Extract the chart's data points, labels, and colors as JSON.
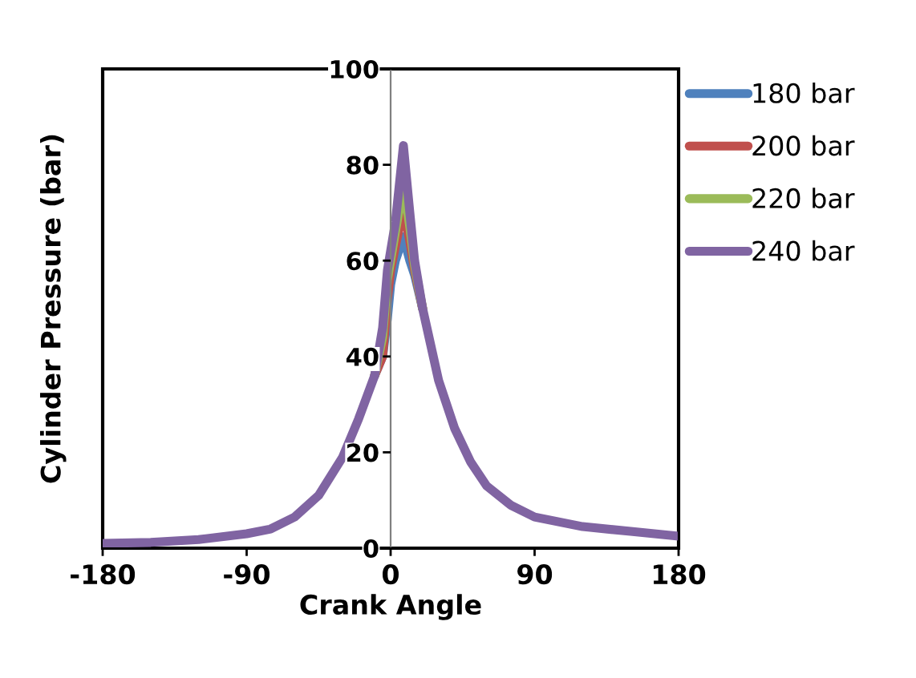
{
  "chart_data": {
    "type": "line",
    "xlabel": "Crank Angle",
    "ylabel": "Cylinder Pressure (bar)",
    "xlim": [
      -180,
      180
    ],
    "ylim": [
      0,
      100
    ],
    "xticks": [
      -180,
      -90,
      0,
      90,
      180
    ],
    "yticks": [
      0,
      20,
      40,
      60,
      80,
      100
    ],
    "grid": false,
    "legend": "right",
    "marker": "none",
    "line_style": "solid",
    "x": [
      -180,
      -150,
      -120,
      -90,
      -75,
      -60,
      -45,
      -30,
      -20,
      -10,
      -5,
      -2,
      0,
      3,
      8,
      12,
      15,
      20,
      30,
      40,
      50,
      60,
      75,
      90,
      120,
      150,
      180
    ],
    "series": [
      {
        "name": "180 bar",
        "color": "#4f81bd",
        "values": [
          null,
          null,
          null,
          null,
          null,
          null,
          null,
          null,
          null,
          36,
          40,
          48,
          55,
          60,
          65,
          60,
          57,
          50,
          null,
          null,
          null,
          null,
          null,
          null,
          null,
          null,
          null
        ]
      },
      {
        "name": "200 bar",
        "color": "#c0504d",
        "values": [
          null,
          null,
          null,
          null,
          null,
          null,
          null,
          null,
          null,
          36,
          40,
          52,
          58,
          63,
          71,
          64,
          58,
          50,
          null,
          null,
          null,
          null,
          null,
          null,
          null,
          null,
          null
        ]
      },
      {
        "name": "220 bar",
        "color": "#9bbb59",
        "values": [
          null,
          null,
          null,
          null,
          null,
          null,
          null,
          null,
          null,
          36,
          44,
          56,
          60,
          66,
          76,
          67,
          59,
          50,
          null,
          null,
          null,
          null,
          null,
          null,
          null,
          null,
          null
        ]
      },
      {
        "name": "240 bar",
        "color": "#8064a2",
        "values": [
          1,
          1.2,
          1.8,
          3,
          4,
          6.5,
          11,
          19,
          27,
          36,
          46,
          58,
          62,
          68,
          84,
          70,
          60,
          50,
          35,
          25,
          18,
          13,
          9,
          6.5,
          4.5,
          3.5,
          2.5
        ]
      }
    ]
  }
}
